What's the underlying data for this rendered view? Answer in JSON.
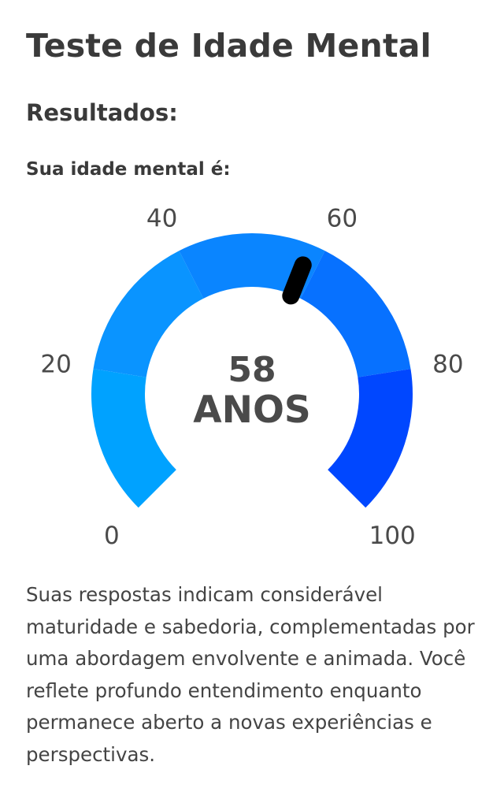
{
  "header": {
    "title": "Teste de Idade Mental"
  },
  "results": {
    "heading": "Resultados:",
    "label": "Sua idade mental é:"
  },
  "gauge": {
    "min": 0,
    "max": 100,
    "value": 58,
    "value_text": "58",
    "unit_text": "ANOS",
    "tick_labels": [
      "0",
      "20",
      "40",
      "60",
      "80",
      "100"
    ],
    "segment_colors": [
      "#00a2ff",
      "#0a94ff",
      "#0a85ff",
      "#0771ff",
      "#0047ff"
    ],
    "needle_color": "#000000",
    "text_color": "#4a4a4a"
  },
  "description": {
    "text": "Suas respostas indicam considerável maturidade e sabedoria, complementadas por uma abordagem envolvente e animada. Você reflete profundo entendimento enquanto permanece aberto a novas experiências e perspectivas."
  }
}
